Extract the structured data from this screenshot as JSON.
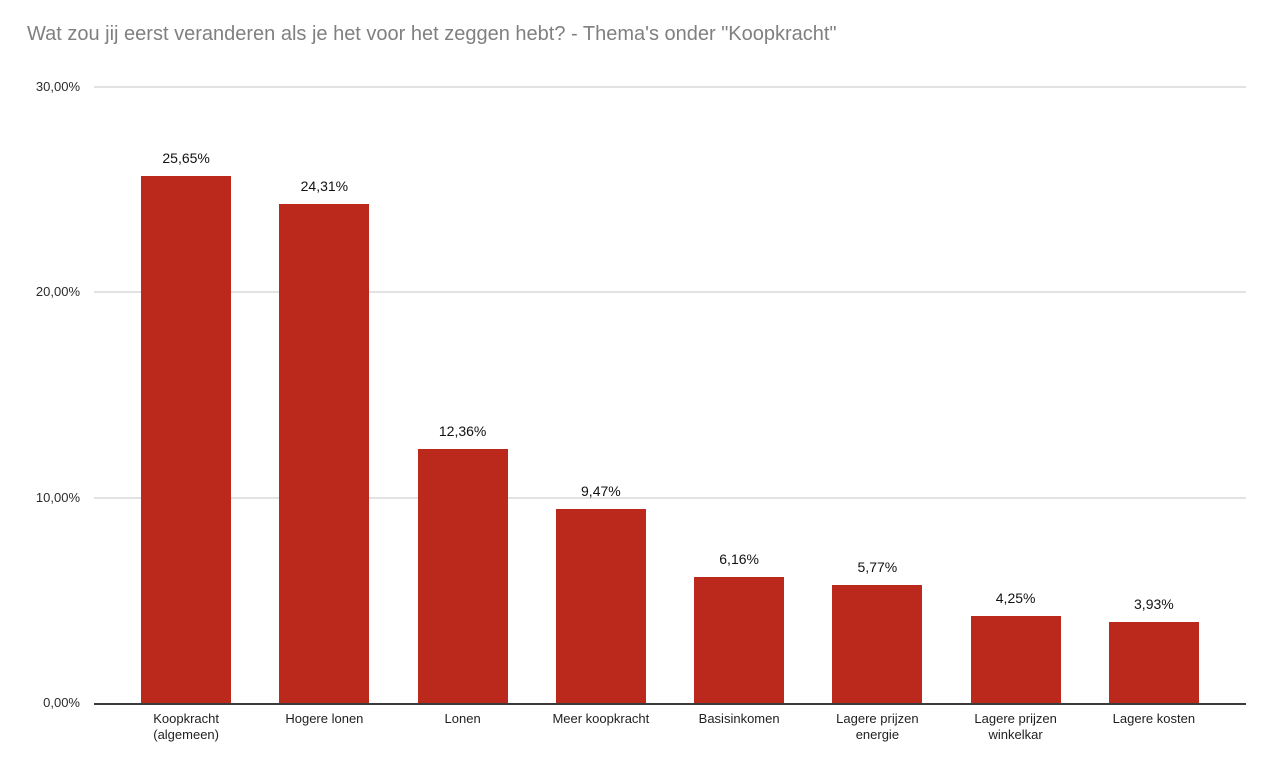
{
  "chart": {
    "title": "Wat zou jij eerst veranderen als je het voor het zeggen hebt? - Thema's onder \"Koopkracht\""
  },
  "colors": {
    "bar": "#bb281c",
    "title_text": "#808080",
    "gridline": "#e2e2e2",
    "axis_line": "#3b3b3b",
    "label_text": "#1f1f1f",
    "background": "#ffffff"
  },
  "chart_data": {
    "type": "bar",
    "title": "Wat zou jij eerst veranderen als je het voor het zeggen hebt? - Thema's onder \"Koopkracht\"",
    "categories": [
      "Koopkracht\n(algemeen)",
      "Hogere lonen",
      "Lonen",
      "Meer koopkracht",
      "Basisinkomen",
      "Lagere prijzen\nenergie",
      "Lagere prijzen\nwinkelkar",
      "Lagere kosten"
    ],
    "values": [
      25.65,
      24.31,
      12.36,
      9.47,
      6.16,
      5.77,
      4.25,
      3.93
    ],
    "value_labels": [
      "25,65%",
      "24,31%",
      "12,36%",
      "9,47%",
      "6,16%",
      "5,77%",
      "4,25%",
      "3,93%"
    ],
    "yticks": [
      {
        "label": "30,00%",
        "value": 30
      },
      {
        "label": "20,00%",
        "value": 20
      },
      {
        "label": "10,00%",
        "value": 10
      },
      {
        "label": "0,00%",
        "value": 0
      }
    ],
    "ylim": [
      0,
      30
    ],
    "xlabel": "",
    "ylabel": "",
    "grid": true,
    "legend": "none",
    "bar_color": "#bb281c"
  }
}
